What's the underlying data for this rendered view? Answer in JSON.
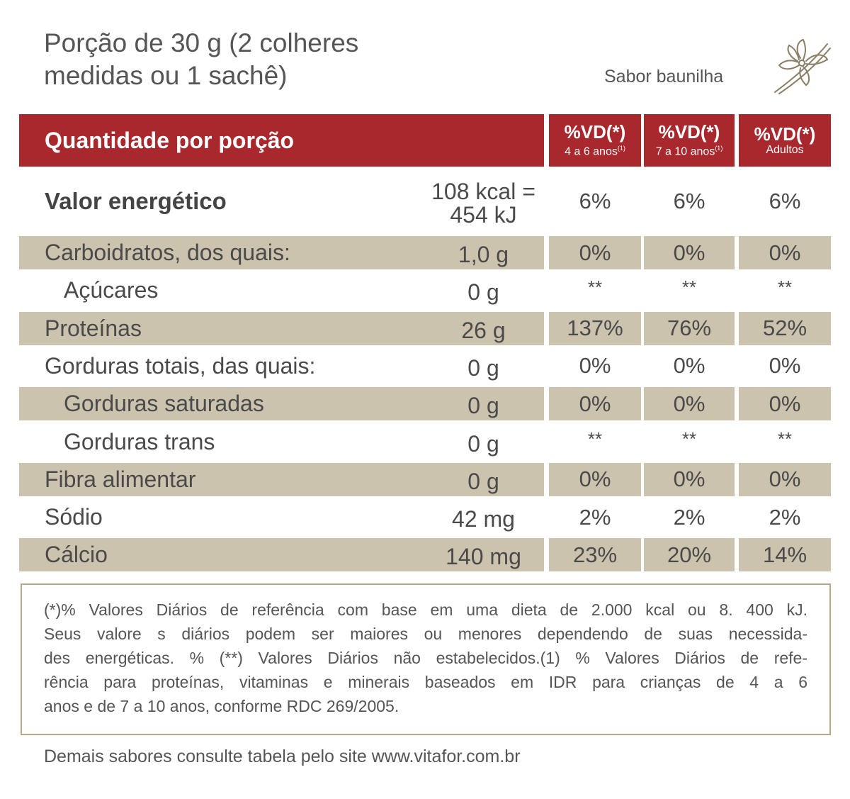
{
  "header": {
    "title_lines": [
      "Porção de 30 g (2 colheres",
      "medidas ou 1 sachê)"
    ],
    "flavor": "Sabor baunilha"
  },
  "table": {
    "columns": [
      {
        "title": "Quantidade por porção"
      },
      {
        "title": "%VD(*)",
        "subtitle": "4 a 6 anos",
        "note": "(1)"
      },
      {
        "title": "%VD(*)",
        "subtitle": "7 a 10 anos",
        "note": "(1)"
      },
      {
        "title": "%VD(*)",
        "subtitle": "Adultos"
      }
    ],
    "rows": [
      {
        "name": "Valor energético",
        "bold": true,
        "amount": [
          "108 kcal =",
          "454 kJ"
        ],
        "dv": [
          "6%",
          "6%",
          "6%"
        ]
      },
      {
        "name": "Carboidratos, dos quais:",
        "amount": "1,0 g",
        "dv": [
          "0%",
          "0%",
          "0%"
        ]
      },
      {
        "name": "Açúcares",
        "indent": true,
        "amount": "0 g",
        "dv": [
          "**",
          "**",
          "**"
        ]
      },
      {
        "name": "Proteínas",
        "amount": "26 g",
        "dv": [
          "137%",
          "76%",
          "52%"
        ]
      },
      {
        "name": "Gorduras totais, das quais:",
        "amount": "0 g",
        "dv": [
          "0%",
          "0%",
          "0%"
        ]
      },
      {
        "name": "Gorduras saturadas",
        "indent": true,
        "amount": "0 g",
        "dv": [
          "0%",
          "0%",
          "0%"
        ]
      },
      {
        "name": "Gorduras trans",
        "indent": true,
        "amount": "0 g",
        "dv": [
          "**",
          "**",
          "**"
        ]
      },
      {
        "name": "Fibra alimentar",
        "amount": "0 g",
        "dv": [
          "0%",
          "0%",
          "0%"
        ]
      },
      {
        "name": "Sódio",
        "amount": "42 mg",
        "dv": [
          "2%",
          "2%",
          "2%"
        ]
      },
      {
        "name": "Cálcio",
        "amount": "140 mg",
        "dv": [
          "23%",
          "20%",
          "14%"
        ]
      }
    ]
  },
  "footnote_lines": [
    "(*)% Valores Diários de referência com base em uma dieta de 2.000 kcal ou 8. 400 kJ.",
    "Seus valore s diários podem ser maiores ou menores dependendo de suas necessida-",
    "des energéticas. % (**) Valores Diários não estabelecidos.(1) % Valores Diários de refe-",
    "rência para proteínas, vitaminas e minerais baseados em IDR para crianças de 4 a 6",
    "anos e de 7 a 10 anos, conforme RDC 269/2005."
  ],
  "footer": "Demais sabores consulte tabela pelo site www.vitafor.com.br"
}
